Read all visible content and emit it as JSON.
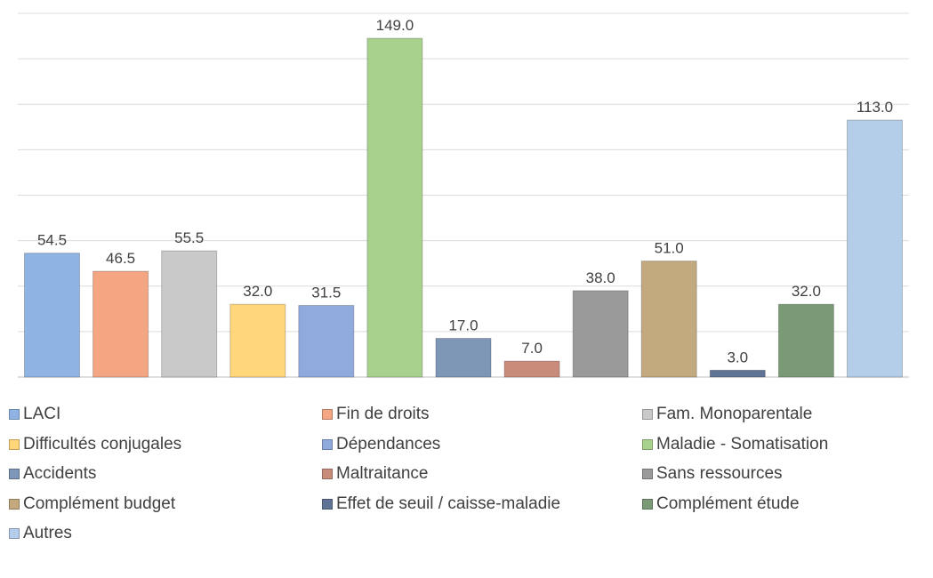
{
  "chart_data": {
    "type": "bar",
    "title": "",
    "xlabel": "",
    "ylabel": "",
    "ylim": [
      0,
      160
    ],
    "grid": true,
    "legend_position": "bottom",
    "categories": [
      "LACI",
      "Fin de droits",
      "Fam. Monoparentale",
      "Difficultés conjugales",
      "Dépendances",
      "Maladie - Somatisation",
      "Accidents",
      "Maltraitance",
      "Sans ressources",
      "Complément budget",
      "Effet de seuil / caisse-maladie",
      "Complément étude",
      "Autres"
    ],
    "values": [
      54.5,
      46.5,
      55.5,
      32.0,
      31.5,
      149.0,
      17.0,
      7.0,
      38.0,
      51.0,
      3.0,
      32.0,
      113.0
    ],
    "value_labels": [
      "54.5",
      "46.5",
      "55.5",
      "32.0",
      "31.5",
      "149.0",
      "17.0",
      "7.0",
      "38.0",
      "51.0",
      "3.0",
      "32.0",
      "113.0"
    ],
    "colors": [
      "#8fb4e3",
      "#f4a582",
      "#c9c9c9",
      "#ffd77a",
      "#8faadc",
      "#a9d18e",
      "#7f97b6",
      "#c98b7a",
      "#9a9a9a",
      "#c2a97e",
      "#5f7394",
      "#7a9a76",
      "#b4cde9"
    ]
  }
}
